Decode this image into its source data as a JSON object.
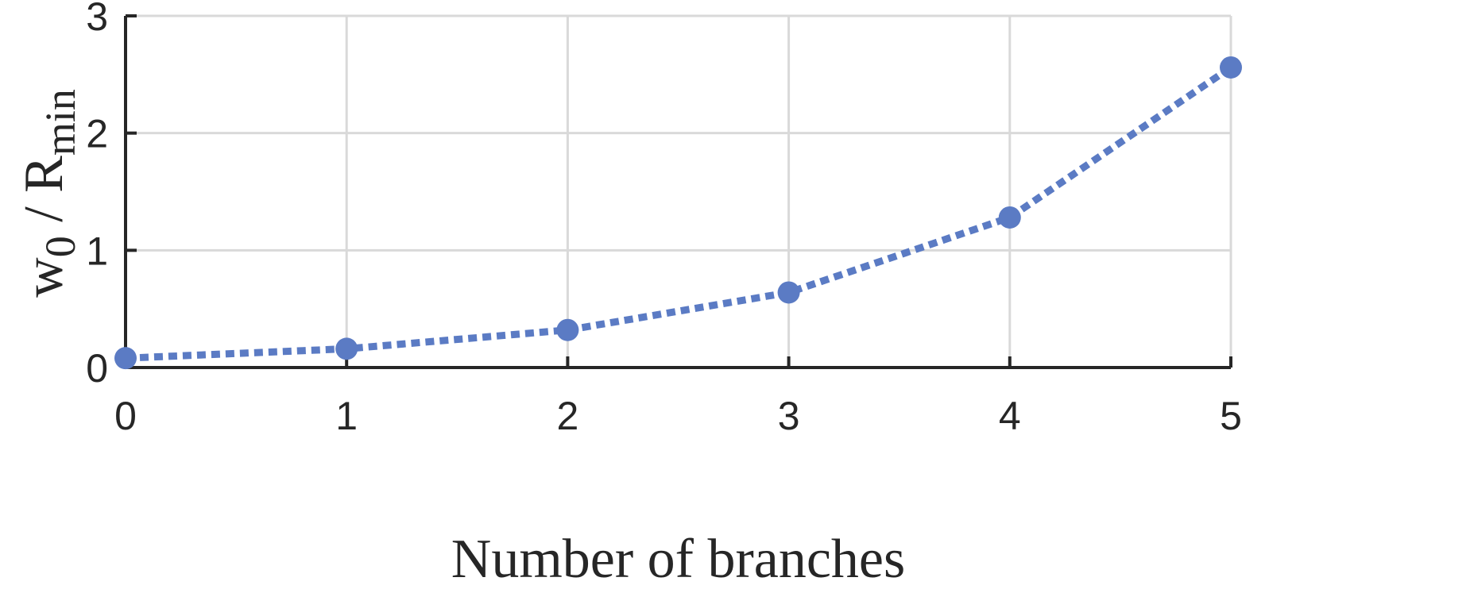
{
  "chart_data": {
    "type": "line",
    "xlabel": "Number of branches",
    "ylabel": {
      "w": "w",
      "w_sub": "0",
      "sep": " / ",
      "r": "R",
      "r_sub": "min"
    },
    "xlim": [
      0,
      5
    ],
    "ylim": [
      0,
      3
    ],
    "xticks": [
      "0",
      "1",
      "2",
      "3",
      "4",
      "5"
    ],
    "yticks": [
      "0",
      "1",
      "2",
      "3"
    ],
    "grid": true,
    "series": [
      {
        "x": [
          0,
          1,
          2,
          3,
          4,
          5
        ],
        "values": [
          0.08,
          0.16,
          0.32,
          0.64,
          1.28,
          2.56
        ],
        "color": "#5b7bc4",
        "line_style": "dotted",
        "marker": "circle"
      }
    ]
  }
}
